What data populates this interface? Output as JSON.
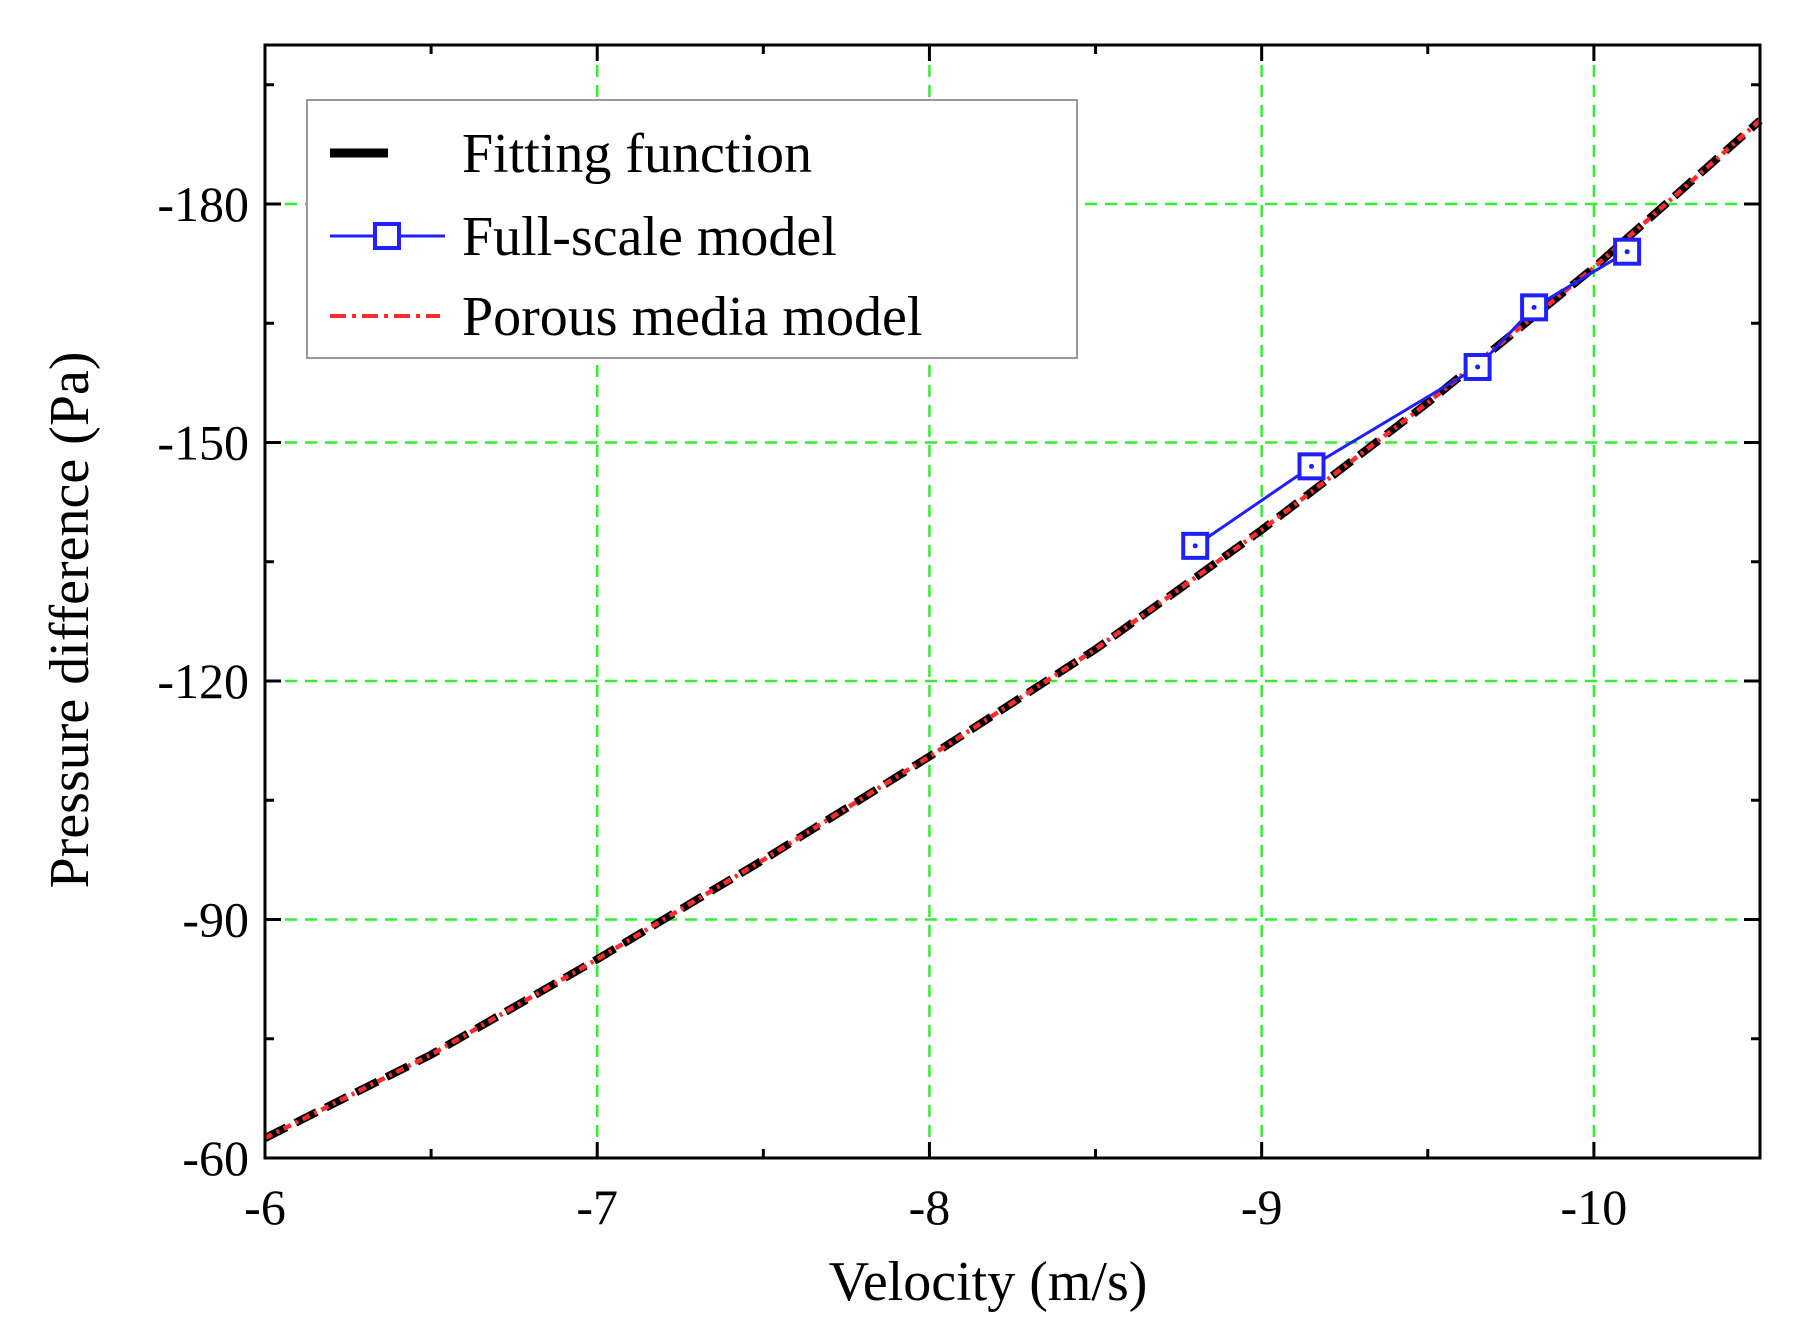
{
  "chart_data": {
    "type": "line",
    "xlabel": "Velocity (m/s)",
    "ylabel": "Pressure difference (Pa)",
    "xlim": [
      -6,
      -10.5
    ],
    "ylim": [
      -60,
      -200
    ],
    "xticks": [
      -6,
      -7,
      -8,
      -9,
      -10
    ],
    "xtick_labels": [
      "-6",
      "-7",
      "-8",
      "-9",
      "-10"
    ],
    "yticks": [
      -60,
      -90,
      -120,
      -150,
      -180
    ],
    "ytick_labels": [
      "-60",
      "-90",
      "-120",
      "-150",
      "-180"
    ],
    "grid": true,
    "legend_position": "top-left",
    "series": [
      {
        "name": "Fitting function",
        "style": "dashed-thick",
        "color": "#000000",
        "x": [
          -6.0,
          -6.5,
          -7.0,
          -7.5,
          -8.0,
          -8.5,
          -9.0,
          -9.5,
          -10.0,
          -10.5
        ],
        "y": [
          -62.5,
          -73.0,
          -85.0,
          -97.5,
          -110.5,
          -124.0,
          -139.0,
          -155.0,
          -172.0,
          -190.5
        ]
      },
      {
        "name": "Full-scale model",
        "style": "solid-square-markers",
        "color": "#1f1fff",
        "x": [
          -8.8,
          -9.15,
          -9.65,
          -9.82,
          -10.1
        ],
        "y": [
          -137.0,
          -147.0,
          -159.5,
          -167.0,
          -174.0
        ]
      },
      {
        "name": "Porous media model",
        "style": "dash-dot",
        "color": "#ff2a2a",
        "x": [
          -6.0,
          -6.5,
          -7.0,
          -7.5,
          -8.0,
          -8.5,
          -9.0,
          -9.5,
          -10.0,
          -10.5
        ],
        "y": [
          -62.5,
          -73.0,
          -85.0,
          -97.5,
          -110.5,
          -124.0,
          -139.0,
          -155.0,
          -172.0,
          -190.5
        ]
      }
    ]
  }
}
